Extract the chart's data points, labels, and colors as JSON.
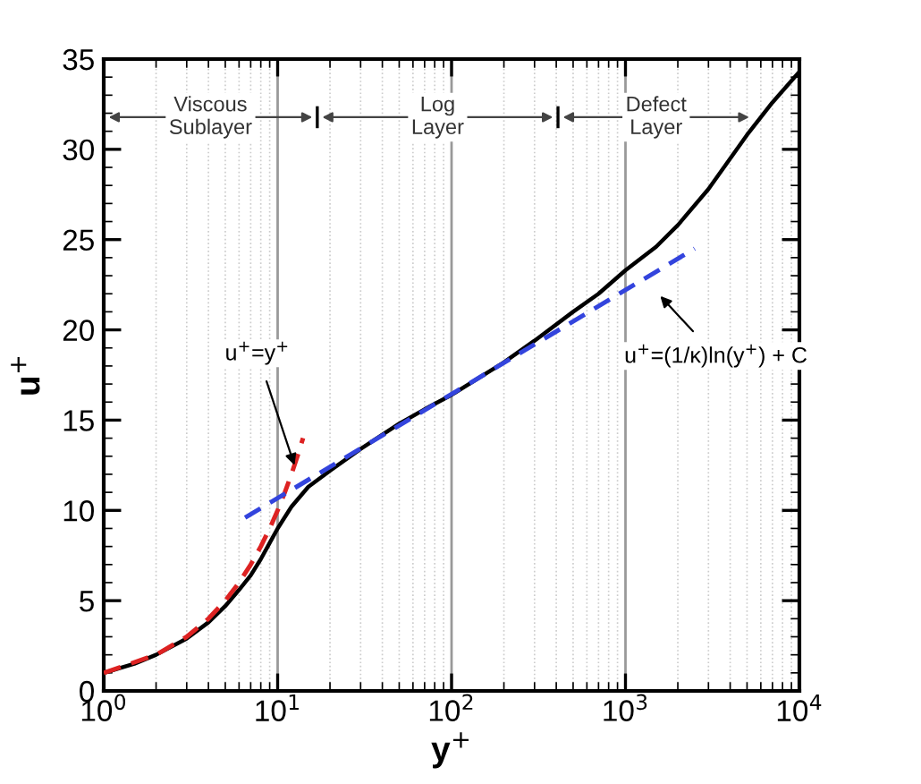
{
  "chart_data": {
    "type": "line",
    "log": "x",
    "xlabel": "y$^{+}$",
    "ylabel": "u$^{+}$",
    "xlim": [
      1,
      10000
    ],
    "ylim": [
      0,
      35
    ],
    "xticks": [
      {
        "value": 1,
        "label": "10$^{0}$"
      },
      {
        "value": 10,
        "label": "10$^{1}$"
      },
      {
        "value": 100,
        "label": "10$^{2}$"
      },
      {
        "value": 1000,
        "label": "10$^{3}$"
      },
      {
        "value": 10000,
        "label": "10$^{4}$"
      }
    ],
    "yticks": [
      0,
      5,
      10,
      15,
      20,
      25,
      30,
      35
    ],
    "grid": "x",
    "series": [
      {
        "color": "#000000",
        "line_style": "solid",
        "x": [
          1,
          1.5,
          2,
          3,
          4,
          5,
          6,
          7,
          8,
          9,
          10,
          12,
          15,
          20,
          30,
          50,
          70,
          100,
          200,
          300,
          500,
          700,
          1000,
          1500,
          2000,
          3000,
          5000,
          7000,
          10000
        ],
        "values": [
          1,
          1.5,
          2.0,
          2.9,
          3.8,
          4.7,
          5.6,
          6.4,
          7.3,
          8.2,
          9.0,
          10.2,
          11.3,
          12.2,
          13.4,
          14.8,
          15.6,
          16.4,
          18.2,
          19.4,
          21.0,
          22.0,
          23.3,
          24.6,
          25.8,
          27.8,
          30.8,
          32.6,
          34.3
        ]
      },
      {
        "color": "#dd2222",
        "line_style": "dashed",
        "x": [
          1,
          2,
          3,
          4,
          5,
          6,
          7,
          8,
          9,
          10,
          11,
          12,
          13,
          14
        ],
        "values": [
          1,
          2,
          3,
          4,
          5,
          6,
          7,
          8,
          9,
          10,
          11,
          12,
          13,
          14
        ]
      },
      {
        "color": "#3344dd",
        "line_style": "dashed",
        "x": [
          6.5,
          2500
        ],
        "values": [
          9.6,
          24.5
        ]
      }
    ],
    "annotations": [
      "Viscous\nSublayer",
      "Log\nLayer",
      "Defect\nLayer",
      {
        "text": "u$^{+}$=y$^{+}$",
        "x": 12.5,
        "y": 12.5
      },
      "u$^{+}$=(1/κ)ln(y$^{+}$) + C"
    ]
  }
}
